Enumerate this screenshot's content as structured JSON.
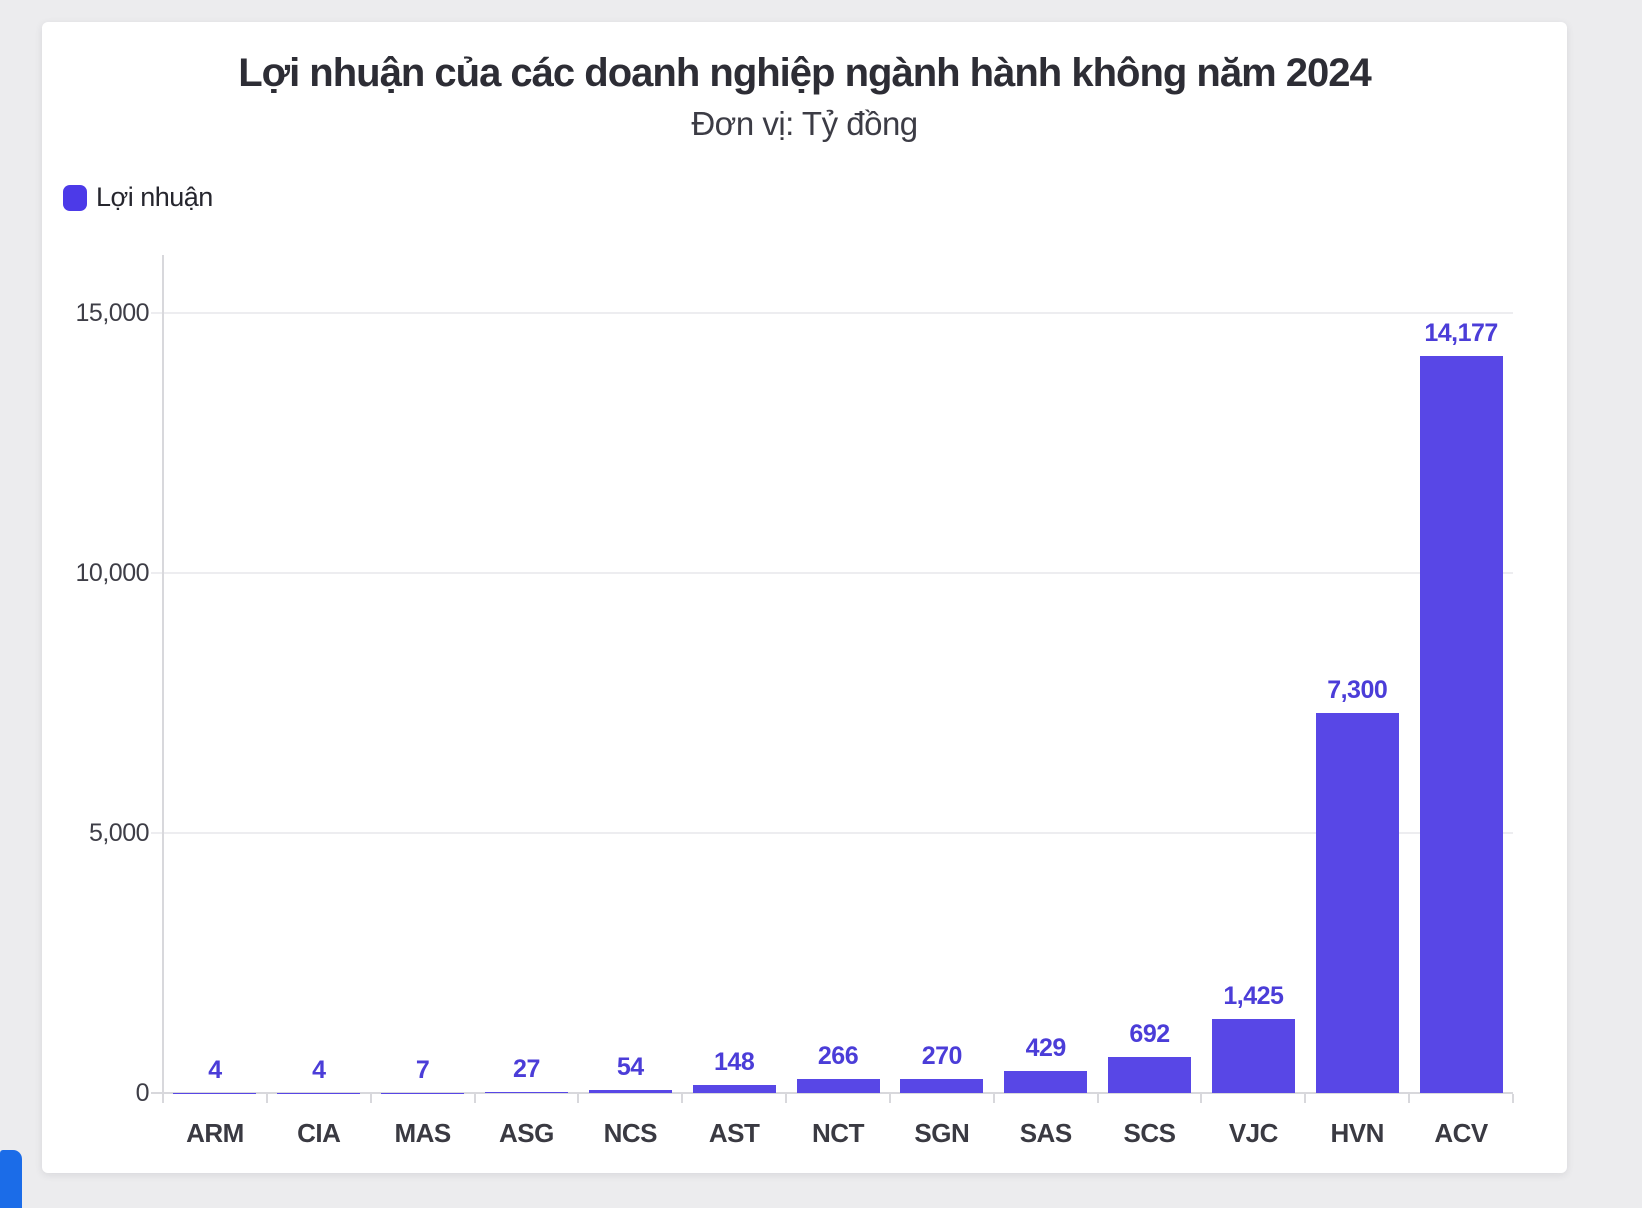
{
  "page": {
    "background_color": "#ececee",
    "card_color": "#ffffff"
  },
  "header": {
    "title": "Lợi nhuận của các doanh nghiệp ngành hành không năm 2024",
    "subtitle": "Đơn vị: Tỷ đồng"
  },
  "legend": {
    "label": "Lợi nhuận",
    "swatch_color": "#4c3ae8"
  },
  "corner_button": {
    "color": "#1b6ce8"
  },
  "chart_data": {
    "type": "bar",
    "title": "Lợi nhuận của các doanh nghiệp ngành hành không năm 2024",
    "unit": "Tỷ đồng",
    "series_name": "Lợi nhuận",
    "categories": [
      "ARM",
      "CIA",
      "MAS",
      "ASG",
      "NCS",
      "AST",
      "NCT",
      "SGN",
      "SAS",
      "SCS",
      "VJC",
      "HVN",
      "ACV"
    ],
    "values": [
      4,
      4,
      7,
      27,
      54,
      148,
      266,
      270,
      429,
      692,
      1425,
      7300,
      14177
    ],
    "value_labels": [
      "4",
      "4",
      "7",
      "27",
      "54",
      "148",
      "266",
      "270",
      "429",
      "692",
      "1,425",
      "7,300",
      "14,177"
    ],
    "ylim": [
      0,
      15000
    ],
    "yticks": [
      0,
      5000,
      10000,
      15000
    ],
    "ytick_labels": [
      "0",
      "5,000",
      "10,000",
      "15,000"
    ],
    "grid": true,
    "legend_position": "top-left",
    "bar_color": "#5847e6",
    "value_label_color": "#4b3dd8",
    "axis_label_color": "#3e3e47",
    "category_label_color": "#3a3a42"
  }
}
